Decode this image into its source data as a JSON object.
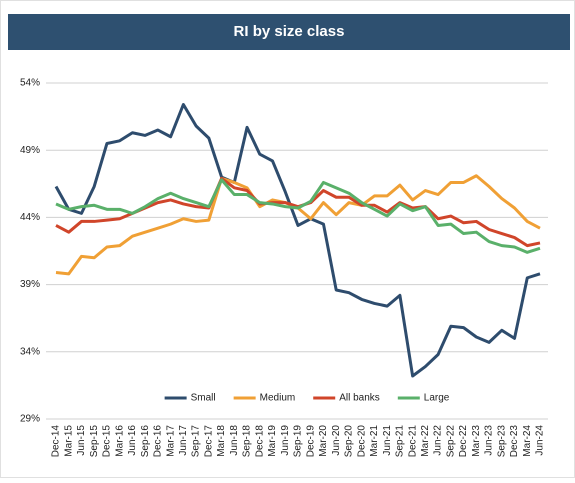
{
  "chart_data": {
    "type": "line",
    "title": "RI by size class",
    "categories": [
      "Dec-14",
      "Mar-15",
      "Jun-15",
      "Sep-15",
      "Dec-15",
      "Mar-16",
      "Jun-16",
      "Sep-16",
      "Dec-16",
      "Mar-17",
      "Jun-17",
      "Sep-17",
      "Dec-17",
      "Mar-18",
      "Jun-18",
      "Sep-18",
      "Dec-18",
      "Mar-19",
      "Jun-19",
      "Sep-19",
      "Dec-19",
      "Mar-20",
      "Jun-20",
      "Sep-20",
      "Dec-20",
      "Mar-21",
      "Jun-21",
      "Sep-21",
      "Dec-21",
      "Mar-22",
      "Jun-22",
      "Sep-22",
      "Dec-22",
      "Mar-23",
      "Jun-23",
      "Sep-23",
      "Dec-23",
      "Mar-24",
      "Jun-24"
    ],
    "series": [
      {
        "name": "Small",
        "color": "#2e4c6d",
        "values": [
          46.3,
          44.6,
          44.3,
          46.3,
          49.5,
          49.7,
          50.3,
          50.1,
          50.5,
          50.0,
          52.4,
          50.8,
          49.9,
          47.0,
          46.6,
          50.7,
          48.7,
          48.2,
          45.9,
          43.4,
          43.9,
          43.5,
          38.6,
          38.4,
          37.9,
          37.6,
          37.4,
          38.2,
          32.2,
          32.9,
          33.8,
          35.9,
          35.8,
          35.1,
          34.7,
          35.6,
          35.0,
          39.5,
          39.8
        ]
      },
      {
        "name": "Medium",
        "color": "#f0a035",
        "values": [
          39.9,
          39.8,
          41.1,
          41.0,
          41.8,
          41.9,
          42.6,
          42.9,
          43.2,
          43.5,
          43.9,
          43.7,
          43.8,
          46.9,
          46.6,
          46.2,
          44.8,
          45.3,
          45.1,
          44.7,
          43.9,
          45.1,
          44.2,
          45.1,
          44.9,
          45.6,
          45.6,
          46.4,
          45.3,
          46.0,
          45.7,
          46.6,
          46.6,
          47.1,
          46.3,
          45.4,
          44.7,
          43.7,
          43.2
        ]
      },
      {
        "name": "All banks",
        "color": "#d0452a",
        "values": [
          43.4,
          42.9,
          43.7,
          43.7,
          43.8,
          43.9,
          44.3,
          44.7,
          45.1,
          45.3,
          45.0,
          44.8,
          44.7,
          46.9,
          46.2,
          46.0,
          45.0,
          45.1,
          45.1,
          44.8,
          45.1,
          46.0,
          45.5,
          45.5,
          44.9,
          44.9,
          44.4,
          45.1,
          44.7,
          44.8,
          43.9,
          44.1,
          43.6,
          43.7,
          43.1,
          42.8,
          42.5,
          41.9,
          42.1
        ]
      },
      {
        "name": "Large",
        "color": "#5ab06a",
        "values": [
          45.0,
          44.6,
          44.8,
          44.9,
          44.6,
          44.6,
          44.3,
          44.8,
          45.4,
          45.8,
          45.4,
          45.1,
          44.8,
          46.8,
          45.7,
          45.7,
          45.1,
          45.0,
          44.8,
          44.7,
          45.2,
          46.6,
          46.2,
          45.8,
          45.1,
          44.6,
          44.1,
          45.0,
          44.5,
          44.8,
          43.4,
          43.5,
          42.8,
          42.9,
          42.2,
          41.9,
          41.8,
          41.4,
          41.7
        ]
      }
    ],
    "ylim": [
      29,
      54
    ],
    "yticks": [
      {
        "value": 29,
        "label": "29%"
      },
      {
        "value": 34,
        "label": "34%"
      },
      {
        "value": 39,
        "label": "39%"
      },
      {
        "value": 44,
        "label": "44%"
      },
      {
        "value": 49,
        "label": "49%"
      },
      {
        "value": 54,
        "label": "54%"
      }
    ],
    "grid": true,
    "legend": "lower center"
  }
}
